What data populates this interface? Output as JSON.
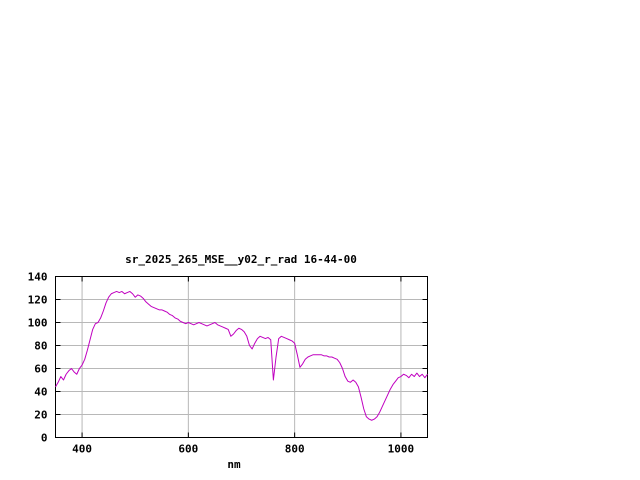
{
  "chart_data": {
    "type": "line",
    "title": "sr_2025_265_MSE__y02_r_rad 16-44-00",
    "xlabel": "nm",
    "ylabel": "",
    "xlim": [
      350,
      1050
    ],
    "ylim": [
      0,
      140
    ],
    "xticks": [
      400,
      600,
      800,
      1000
    ],
    "yticks": [
      0,
      20,
      40,
      60,
      80,
      100,
      120,
      140
    ],
    "grid": true,
    "legend": "none",
    "axis_color": "#000000",
    "grid_color": "#b8b8b8",
    "line_color": "#c000c0",
    "series": [
      {
        "name": "sr_2025_265_MSE__y02_r_rad 16-44-00",
        "x": [
          350,
          355,
          360,
          365,
          370,
          375,
          380,
          385,
          390,
          395,
          400,
          405,
          410,
          415,
          420,
          425,
          430,
          435,
          440,
          445,
          450,
          455,
          460,
          465,
          470,
          475,
          480,
          485,
          490,
          495,
          500,
          505,
          510,
          515,
          520,
          525,
          530,
          535,
          540,
          545,
          550,
          555,
          560,
          565,
          570,
          575,
          580,
          585,
          590,
          595,
          600,
          605,
          610,
          615,
          620,
          625,
          630,
          635,
          640,
          645,
          650,
          655,
          660,
          665,
          670,
          675,
          680,
          685,
          690,
          695,
          700,
          705,
          710,
          715,
          720,
          725,
          730,
          735,
          740,
          745,
          750,
          755,
          760,
          765,
          770,
          775,
          780,
          785,
          790,
          795,
          800,
          805,
          810,
          815,
          820,
          825,
          830,
          835,
          840,
          845,
          850,
          855,
          860,
          865,
          870,
          875,
          880,
          885,
          890,
          895,
          900,
          905,
          910,
          915,
          920,
          925,
          930,
          935,
          940,
          945,
          950,
          955,
          960,
          965,
          970,
          975,
          980,
          985,
          990,
          995,
          1000,
          1005,
          1010,
          1015,
          1020,
          1025,
          1030,
          1035,
          1040,
          1045,
          1050
        ],
        "y": [
          44,
          48,
          53,
          50,
          55,
          58,
          60,
          57,
          55,
          60,
          63,
          68,
          76,
          85,
          94,
          99,
          100,
          104,
          110,
          117,
          122,
          125,
          126,
          127,
          126,
          127,
          125,
          126,
          127,
          125,
          122,
          124,
          123,
          121,
          118,
          116,
          114,
          113,
          112,
          111,
          111,
          110,
          109,
          107,
          106,
          104,
          103,
          101,
          100,
          99,
          100,
          99,
          98,
          99,
          100,
          99,
          98,
          97,
          98,
          99,
          100,
          98,
          97,
          96,
          95,
          94,
          88,
          90,
          93,
          95,
          94,
          92,
          88,
          80,
          77,
          82,
          86,
          88,
          87,
          86,
          87,
          85,
          50,
          70,
          86,
          88,
          87,
          86,
          85,
          84,
          82,
          72,
          61,
          64,
          68,
          70,
          71,
          72,
          72,
          72,
          72,
          71,
          71,
          70,
          70,
          69,
          68,
          65,
          60,
          53,
          49,
          48,
          50,
          48,
          44,
          35,
          25,
          18,
          16,
          15,
          16,
          18,
          22,
          27,
          32,
          37,
          42,
          46,
          49,
          52,
          53,
          55,
          54,
          52,
          55,
          53,
          56,
          53,
          55,
          52,
          55
        ]
      }
    ]
  }
}
